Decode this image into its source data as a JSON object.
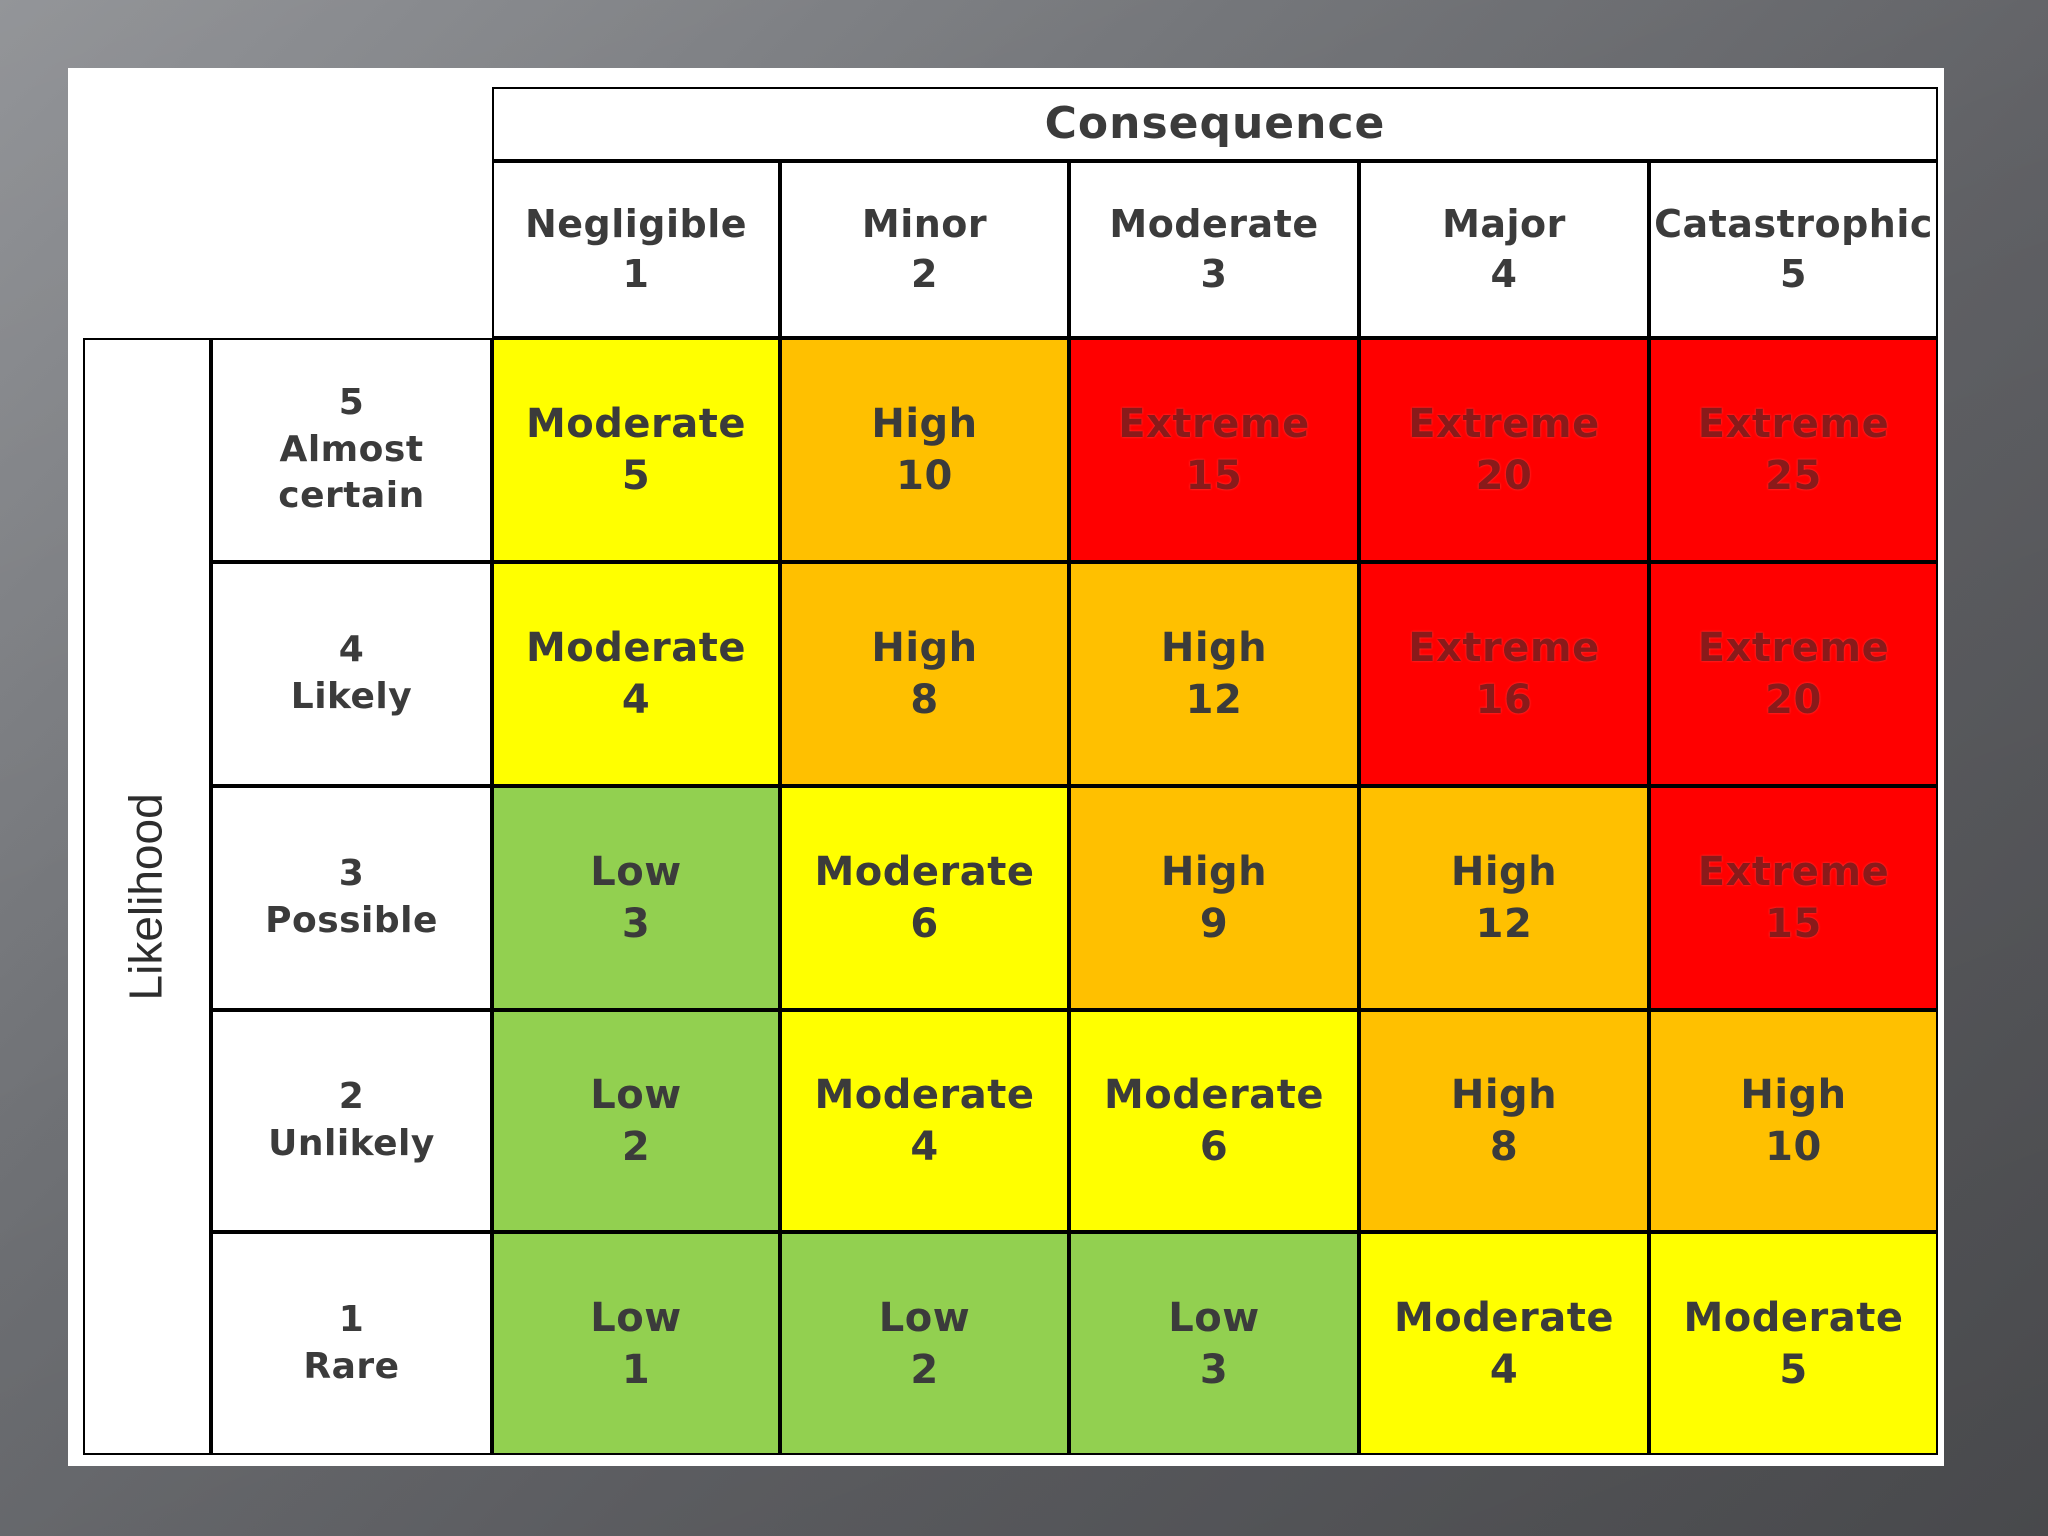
{
  "matrix": {
    "consequence_title": "Consequence",
    "likelihood_title": "Likelihood",
    "colors": {
      "Low": "#92d050",
      "Moderate": "#ffff00",
      "High": "#ffc000",
      "Extreme": "#ff0000"
    },
    "columns": [
      {
        "name": "Negligible",
        "num": "1"
      },
      {
        "name": "Minor",
        "num": "2"
      },
      {
        "name": "Moderate",
        "num": "3"
      },
      {
        "name": "Major",
        "num": "4"
      },
      {
        "name": "Catastrophic",
        "num": "5"
      }
    ],
    "rows": [
      {
        "num": "5",
        "label": "Almost certain",
        "cells": [
          {
            "level": "Moderate",
            "score": "5"
          },
          {
            "level": "High",
            "score": "10"
          },
          {
            "level": "Extreme",
            "score": "15"
          },
          {
            "level": "Extreme",
            "score": "20"
          },
          {
            "level": "Extreme",
            "score": "25"
          }
        ]
      },
      {
        "num": "4",
        "label": "Likely",
        "cells": [
          {
            "level": "Moderate",
            "score": "4"
          },
          {
            "level": "High",
            "score": "8"
          },
          {
            "level": "High",
            "score": "12"
          },
          {
            "level": "Extreme",
            "score": "16"
          },
          {
            "level": "Extreme",
            "score": "20"
          }
        ]
      },
      {
        "num": "3",
        "label": "Possible",
        "cells": [
          {
            "level": "Low",
            "score": "3"
          },
          {
            "level": "Moderate",
            "score": "6"
          },
          {
            "level": "High",
            "score": "9"
          },
          {
            "level": "High",
            "score": "12"
          },
          {
            "level": "Extreme",
            "score": "15"
          }
        ]
      },
      {
        "num": "2",
        "label": "Unlikely",
        "cells": [
          {
            "level": "Low",
            "score": "2"
          },
          {
            "level": "Moderate",
            "score": "4"
          },
          {
            "level": "Moderate",
            "score": "6"
          },
          {
            "level": "High",
            "score": "8"
          },
          {
            "level": "High",
            "score": "10"
          }
        ]
      },
      {
        "num": "1",
        "label": "Rare",
        "cells": [
          {
            "level": "Low",
            "score": "1"
          },
          {
            "level": "Low",
            "score": "2"
          },
          {
            "level": "Low",
            "score": "3"
          },
          {
            "level": "Moderate",
            "score": "4"
          },
          {
            "level": "Moderate",
            "score": "5"
          }
        ]
      }
    ]
  }
}
